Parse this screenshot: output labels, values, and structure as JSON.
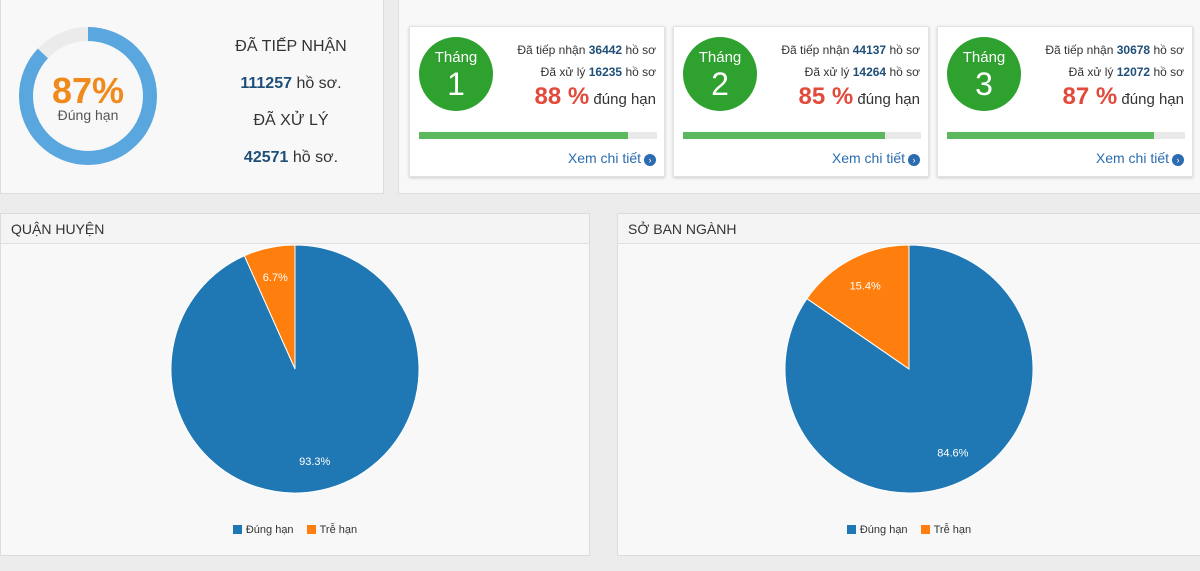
{
  "summary": {
    "percent": "87%",
    "percent_value": 87,
    "percent_label": "Đúng hạn",
    "received_label": "ĐÃ TIẾP NHẬN",
    "received_value": "111257",
    "received_unit": "hồ sơ.",
    "processed_label": "ĐÃ XỬ LÝ",
    "processed_value": "42571",
    "processed_unit": "hồ sơ.",
    "colors": {
      "ring": "#5aa6de",
      "ring_bg": "#ebebeb",
      "percent": "#f08a1c"
    }
  },
  "months": [
    {
      "label": "Tháng",
      "number": "1",
      "received_prefix": "Đã tiếp nhận",
      "received": "36442",
      "received_unit": "hồ sơ",
      "processed_prefix": "Đã xử lý",
      "processed": "16235",
      "processed_unit": "hồ sơ",
      "percent": "88 %",
      "percent_suffix": "đúng hạn",
      "progress": 0.88,
      "link": "Xem chi tiết"
    },
    {
      "label": "Tháng",
      "number": "2",
      "received_prefix": "Đã tiếp nhận",
      "received": "44137",
      "received_unit": "hồ sơ",
      "processed_prefix": "Đã xử lý",
      "processed": "14264",
      "processed_unit": "hồ sơ",
      "percent": "85 %",
      "percent_suffix": "đúng hạn",
      "progress": 0.85,
      "link": "Xem chi tiết"
    },
    {
      "label": "Tháng",
      "number": "3",
      "received_prefix": "Đã tiếp nhận",
      "received": "30678",
      "received_unit": "hồ sơ",
      "processed_prefix": "Đã xử lý",
      "processed": "12072",
      "processed_unit": "hồ sơ",
      "percent": "87 %",
      "percent_suffix": "đúng hạn",
      "progress": 0.87,
      "link": "Xem chi tiết"
    }
  ],
  "colors": {
    "month_circle": "#2ea12e",
    "progress": "#5cb85c",
    "percent": "#e24a3b",
    "link": "#2b6cb0",
    "dung_han": "#1f77b4",
    "tre_han": "#ff7f0e"
  },
  "chart_data": [
    {
      "type": "pie",
      "title": "QUẬN HUYỆN",
      "categories": [
        "Đúng hạn",
        "Trễ hạn"
      ],
      "values": [
        93.3,
        6.7
      ],
      "labels": [
        "93.3%",
        "6.7%"
      ],
      "legend_placement": "bottom"
    },
    {
      "type": "pie",
      "title": "SỞ BAN NGÀNH",
      "categories": [
        "Đúng hạn",
        "Trễ hạn"
      ],
      "values": [
        84.6,
        15.4
      ],
      "labels": [
        "84.6%",
        "15.4%"
      ],
      "legend_placement": "bottom"
    }
  ]
}
